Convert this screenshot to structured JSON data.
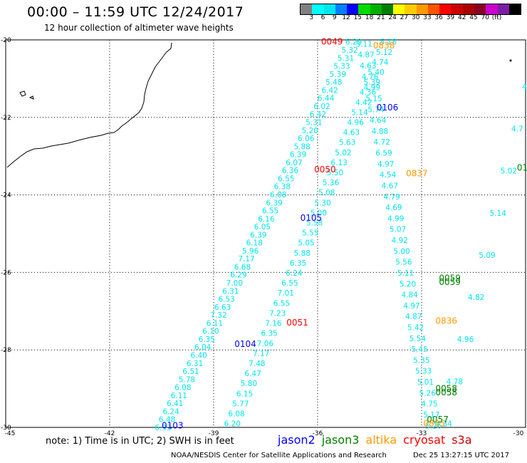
{
  "title": "00:00 – 11:59 UTC 12/24/2017",
  "subtitle": "12 hour collection of altimeter wave heights",
  "colorbar": {
    "colors": [
      "#808080",
      "#00ffff",
      "#00e5ee",
      "#0080ff",
      "#0000ff",
      "#00dd00",
      "#00b000",
      "#008000",
      "#ffff00",
      "#ffcc00",
      "#ff9900",
      "#ff5500",
      "#ff0000",
      "#cc0000",
      "#aa0000",
      "#880022",
      "#cc00cc",
      "#7a1fa2",
      "#000000"
    ],
    "labels": [
      "3",
      "6",
      "9",
      "12",
      "15",
      "18",
      "21",
      "24",
      "27",
      "30",
      "33",
      "36",
      "39",
      "42",
      "45",
      "70",
      "(ft)"
    ]
  },
  "map": {
    "lon_range": [
      -45,
      -30
    ],
    "lat_range": [
      -30,
      -20
    ],
    "lon_ticks": [
      "-45",
      "-42",
      "-39",
      "-36",
      "-33",
      "-30"
    ],
    "lat_ticks": [
      "-20",
      "-22",
      "-24",
      "-26",
      "-28",
      "-30"
    ]
  },
  "time_labels": [
    {
      "text": "0049",
      "color": "#ff0000",
      "lon": -35.9,
      "lat": -20.05
    },
    {
      "text": "0838",
      "color": "#ff9900",
      "lon": -34.4,
      "lat": -20.15
    },
    {
      "text": "0106",
      "color": "#0000ff",
      "lon": -34.3,
      "lat": -21.75
    },
    {
      "text": "0050",
      "color": "#ff0000",
      "lon": -36.1,
      "lat": -23.35
    },
    {
      "text": "0837",
      "color": "#ff9900",
      "lon": -33.45,
      "lat": -23.45
    },
    {
      "text": "0105",
      "color": "#0000ff",
      "lon": -36.5,
      "lat": -24.6
    },
    {
      "text": "0059",
      "color": "#008000",
      "lon": -32.5,
      "lat": -26.15
    },
    {
      "text": "0059",
      "color": "#008000",
      "lon": -32.5,
      "lat": -26.25
    },
    {
      "text": "0836",
      "color": "#ff9900",
      "lon": -32.6,
      "lat": -27.25
    },
    {
      "text": "0051",
      "color": "#ff0000",
      "lon": -36.9,
      "lat": -27.3
    },
    {
      "text": "0104",
      "color": "#0000ff",
      "lon": -38.4,
      "lat": -27.85
    },
    {
      "text": "0058",
      "color": "#008000",
      "lon": -32.6,
      "lat": -29.0
    },
    {
      "text": "0058",
      "color": "#008000",
      "lon": -32.6,
      "lat": -29.1
    },
    {
      "text": "0057",
      "color": "#008000",
      "lon": -32.85,
      "lat": -29.8
    },
    {
      "text": "0835",
      "color": "#ff9900",
      "lon": -32.95,
      "lat": -29.9
    },
    {
      "text": "0103",
      "color": "#0000ff",
      "lon": -40.5,
      "lat": -29.95
    },
    {
      "text": "01",
      "color": "#008000",
      "lon": -30.25,
      "lat": -23.3
    }
  ],
  "tracks": [
    {
      "lon_start": -35.2,
      "lat_start": -20.05,
      "lon_end": -40.7,
      "lat_end": -30.0,
      "values": [
        "6.29",
        "5.32",
        "5.31",
        "5.33",
        "5.39",
        "5.48",
        "6.42",
        "6.44",
        "6.02",
        "6.42",
        "5.31",
        "5.20",
        "6.06",
        "5.88",
        "6.39",
        "6.07",
        "6.36",
        "6.55",
        "6.38",
        "6.08",
        "6.39",
        "6.55",
        "6.16",
        "6.05",
        "6.39",
        "6.18",
        "5.96",
        "7.17",
        "6.68",
        "6.29",
        "7.00",
        "6.31",
        "6.53",
        "6.63",
        "7.32",
        "6.11",
        "6.10",
        "6.35",
        "6.04",
        "6.40",
        "6.31",
        "6.51",
        "5.78",
        "6.08",
        "6.11",
        "6.41",
        "6.24",
        "6.48",
        "6.93"
      ]
    },
    {
      "lon_start": -34.2,
      "lat_start": -20.05,
      "lon_end": -38.7,
      "lat_end": -29.9,
      "values": [
        "5.18",
        "5.12",
        "4.74",
        "5.40",
        "5.39",
        "4.36",
        "4.42",
        "5.14",
        "4.96",
        "4.63",
        "5.63",
        "5.02",
        "6.13",
        "5.50",
        "5.36",
        "5.08",
        "5.30",
        "5.00",
        "5.58",
        "5.55",
        "5.05",
        "5.88",
        "6.35",
        "6.24",
        "6.55",
        "7.01",
        "6.55",
        "7.23",
        "7.16",
        "6.35",
        "7.06",
        "7.17",
        "7.48",
        "6.47",
        "5.80",
        "6.15",
        "5.77",
        "6.08",
        "6.20"
      ]
    },
    {
      "lon_start": -34.9,
      "lat_start": -20.1,
      "lon_end": -32.9,
      "lat_end": -29.95,
      "values": [
        "5.11",
        "4.87",
        "4.63",
        "4.76",
        "4.99",
        "5.15",
        "5.74",
        "4.64",
        "4.88",
        "4.72",
        "6.59",
        "4.97",
        "4.54",
        "4.67",
        "4.79",
        "4.69",
        "4.99",
        "5.07",
        "4.92",
        "5.00",
        "5.56",
        "5.11",
        "5.20",
        "4.84",
        "4.97",
        "4.87",
        "5.42",
        "5.54",
        "5.45",
        "5.35",
        "5.33",
        "5.01",
        "5.26",
        "4.75",
        "5.17",
        "5.26"
      ]
    },
    {
      "lon_start": -30.1,
      "lat_start": -21.2,
      "lon_end": -32.6,
      "lat_end": -29.9,
      "values": [
        "4.9",
        "4.7",
        "5.02",
        "5.14",
        "5.09",
        "4.82",
        "4.96",
        "4.78",
        "4.34"
      ]
    }
  ],
  "note": "note: 1) Time is in UTC; 2) SWH is in feet",
  "legend": [
    {
      "text": "jason2",
      "color": "#0000ff"
    },
    {
      "text": "jason3",
      "color": "#008000"
    },
    {
      "text": "altika",
      "color": "#ff9900"
    },
    {
      "text": "cryosat",
      "color": "#ff0000"
    },
    {
      "text": "s3a",
      "color": "#cc0000"
    }
  ],
  "footer": "NOAA/NESDIS Center for Satellite Applications and Research",
  "timestamp": "Dec 25 13:27:15 UTC 2017"
}
